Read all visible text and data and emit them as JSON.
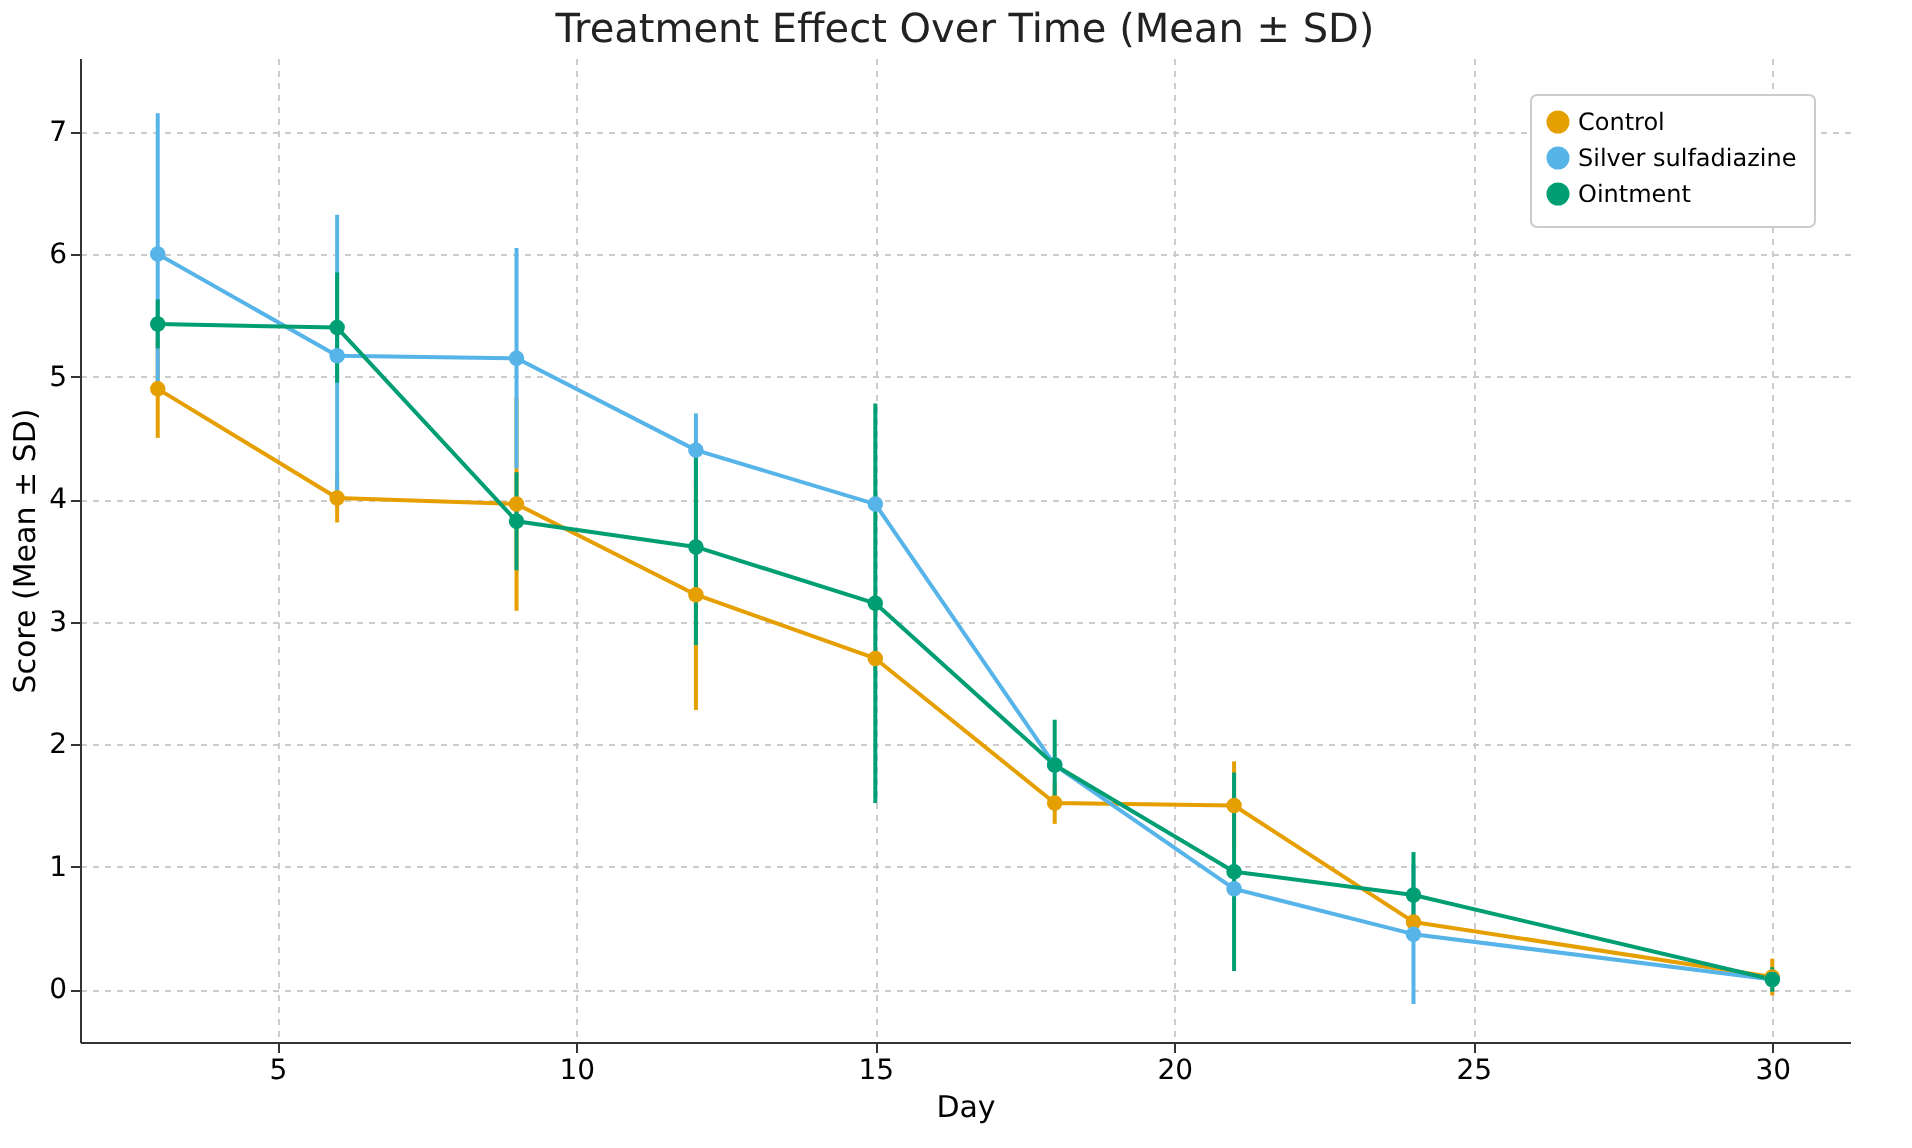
{
  "chart_data": {
    "type": "line",
    "title": "Treatment Effect Over Time (Mean ± SD)",
    "xlabel": "Day",
    "ylabel": "Score (Mean ± SD)",
    "x": [
      3,
      6,
      9,
      12,
      15,
      18,
      21,
      24,
      30
    ],
    "series": [
      {
        "name": "Control",
        "color": "#e69f00",
        "values": [
          4.9,
          4.01,
          3.96,
          3.22,
          2.7,
          1.52,
          1.5,
          0.55,
          0.1
        ],
        "errors": [
          0.4,
          0.2,
          0.87,
          0.94,
          null,
          0.17,
          0.36,
          null,
          0.15
        ]
      },
      {
        "name": "Silver sulfadiazine",
        "color": "#56b4e9",
        "values": [
          6.0,
          5.17,
          5.15,
          4.4,
          3.96,
          1.83,
          0.82,
          0.45,
          0.08
        ],
        "errors": [
          1.15,
          1.15,
          0.9,
          0.3,
          null,
          null,
          null,
          0.57,
          null
        ]
      },
      {
        "name": "Ointment",
        "color": "#009e73",
        "values": [
          5.43,
          5.4,
          3.82,
          3.61,
          3.15,
          1.83,
          0.96,
          0.77,
          0.08
        ],
        "errors": [
          0.2,
          0.45,
          0.4,
          0.8,
          1.63,
          0.37,
          0.81,
          0.35,
          0.1
        ]
      }
    ],
    "xlim": [
      1.7,
      31.3
    ],
    "xticks": [
      5,
      10,
      15,
      20,
      25,
      30
    ],
    "ylim": [
      -0.43,
      7.6
    ],
    "yticks": [
      0,
      1,
      2,
      3,
      4,
      5,
      6,
      7
    ],
    "grid": true,
    "legend": "top right",
    "marker": "circle",
    "line_style": "solid"
  }
}
